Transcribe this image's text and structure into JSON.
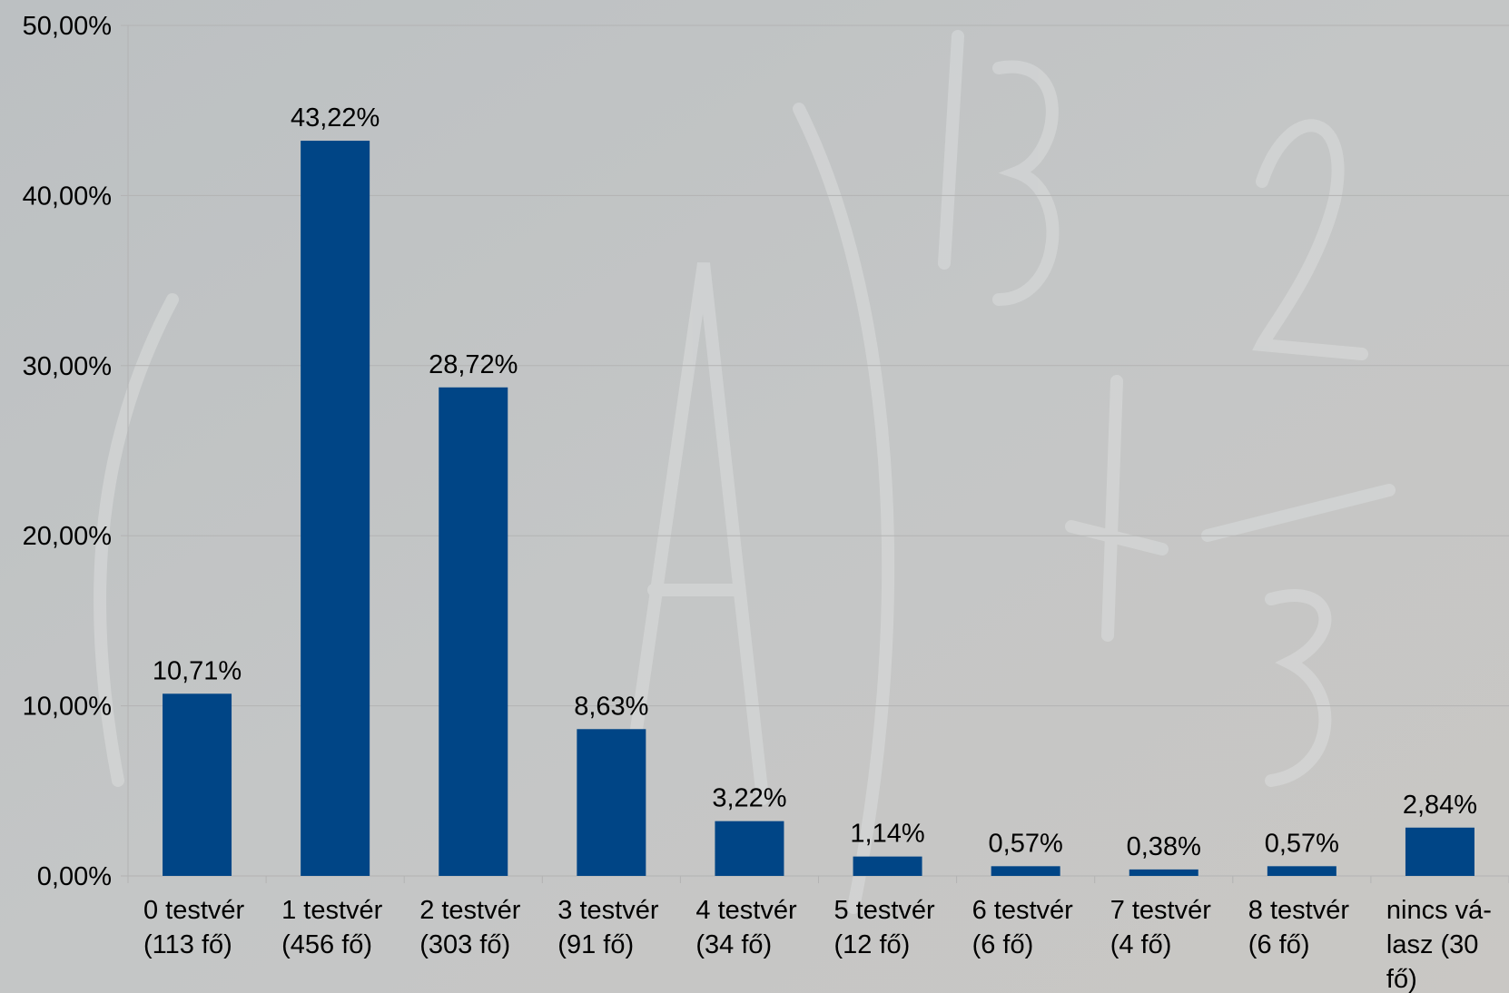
{
  "chart_data": {
    "type": "bar",
    "categories": [
      [
        "0 testvér",
        "(113 fő)"
      ],
      [
        "1 testvér",
        "(456 fő)"
      ],
      [
        "2 testvér",
        "(303 fő)"
      ],
      [
        "3 testvér",
        "(91 fő)"
      ],
      [
        "4 testvér",
        "(34 fő)"
      ],
      [
        "5 testvér",
        "(12 fő)"
      ],
      [
        "6 testvér",
        "(6 fő)"
      ],
      [
        "7 testvér",
        "(4 fő)"
      ],
      [
        "8 testvér",
        "(6 fő)"
      ],
      [
        "nincs vá-",
        "lasz (30",
        "fő)"
      ]
    ],
    "values": [
      10.71,
      43.22,
      28.72,
      8.63,
      3.22,
      1.14,
      0.57,
      0.38,
      0.57,
      2.84
    ],
    "value_labels": [
      "10,71%",
      "43,22%",
      "28,72%",
      "8,63%",
      "3,22%",
      "1,14%",
      "0,57%",
      "0,38%",
      "0,57%",
      "2,84%"
    ],
    "color": "#004586",
    "ylim": [
      0,
      50
    ],
    "yticks": [
      {
        "value": 0,
        "label": "0,00%"
      },
      {
        "value": 10,
        "label": "10,00%"
      },
      {
        "value": 20,
        "label": "20,00%"
      },
      {
        "value": 30,
        "label": "30,00%"
      },
      {
        "value": 40,
        "label": "40,00%"
      },
      {
        "value": 50,
        "label": "50,00%"
      }
    ],
    "grid": true
  }
}
